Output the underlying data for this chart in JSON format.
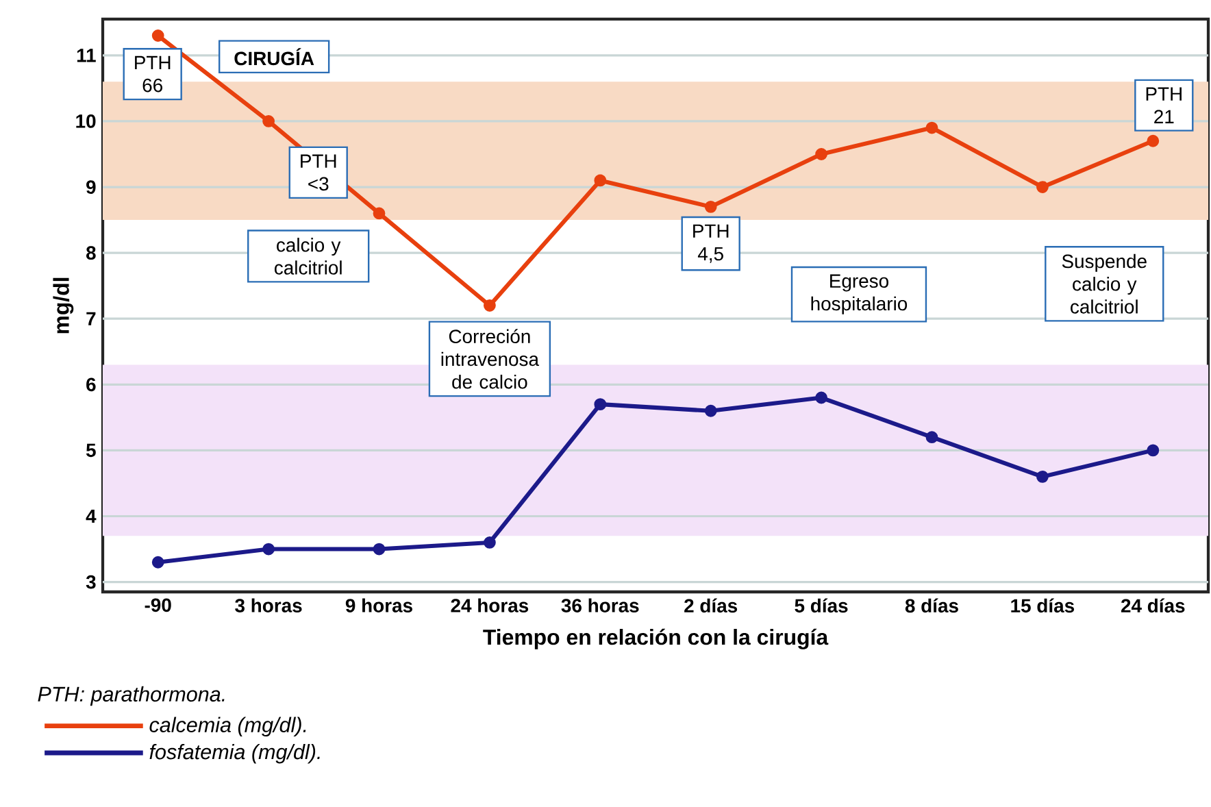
{
  "chart_data": {
    "type": "line",
    "xlabel": "Tiempo en relación con la cirugía",
    "ylabel": "mg/dl",
    "categories": [
      "-90",
      "3 horas",
      "9 horas",
      "24 horas",
      "36 horas",
      "2 días",
      "5 días",
      "8 días",
      "15 días",
      "24 días"
    ],
    "series": [
      {
        "name": "calcemia (mg/dl).",
        "color": "#e8400e",
        "values": [
          11.3,
          10.0,
          8.6,
          7.2,
          9.1,
          8.7,
          9.5,
          9.9,
          9.0,
          9.7
        ]
      },
      {
        "name": "fosfatemia (mg/dl).",
        "color": "#1c1a8a",
        "values": [
          3.3,
          3.5,
          3.5,
          3.6,
          5.7,
          5.6,
          5.8,
          5.2,
          4.6,
          5.0
        ]
      }
    ],
    "ylim": [
      2.85,
      11.55
    ],
    "yticks": [
      3,
      4,
      5,
      6,
      7,
      8,
      9,
      10,
      11
    ],
    "bands": [
      {
        "axis": "y",
        "from": 8.5,
        "to": 10.6,
        "color": "#f8dac4"
      },
      {
        "axis": "y",
        "from": 3.7,
        "to": 6.3,
        "color": "#f3e2f9"
      }
    ],
    "annotations": [
      "CIRUGÍA",
      {
        "text": "PTH 66",
        "x": "-90",
        "y": 11.3
      },
      "PTH <3",
      {
        "text": "PTH 4,5",
        "x": "2 días",
        "y": 8.7
      },
      {
        "text": "PTH 21",
        "x": "24 días",
        "y": 9.7
      },
      "calcio y calcitriol",
      "Correción intravenosa de calcio",
      "Egreso hospitalario",
      "Suspende calcio y calcitriol",
      "PTH: parathormona."
    ],
    "grid": "y",
    "legend": "bottom left",
    "marker": "circle",
    "line_style": "solid"
  }
}
